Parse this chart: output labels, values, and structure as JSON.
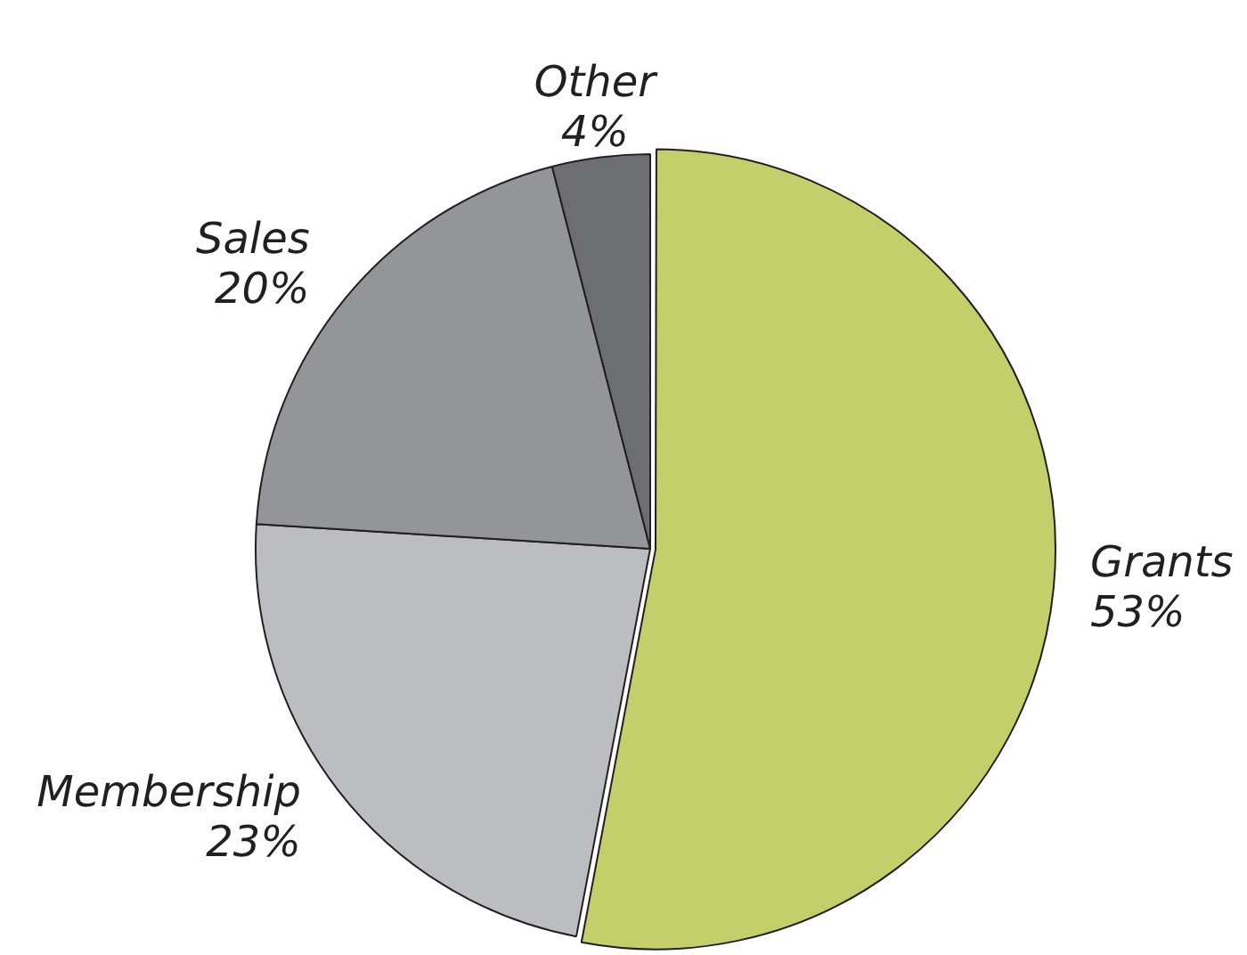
{
  "chart_data": {
    "type": "pie",
    "categories": [
      "Grants",
      "Membership",
      "Sales",
      "Other"
    ],
    "values": [
      53,
      23,
      20,
      4
    ],
    "colors": [
      "#c2cf6b",
      "#bcbdc0",
      "#939598",
      "#6d6e71"
    ],
    "value_labels": [
      "53%",
      "23%",
      "20%",
      "4%"
    ],
    "legend": false
  }
}
